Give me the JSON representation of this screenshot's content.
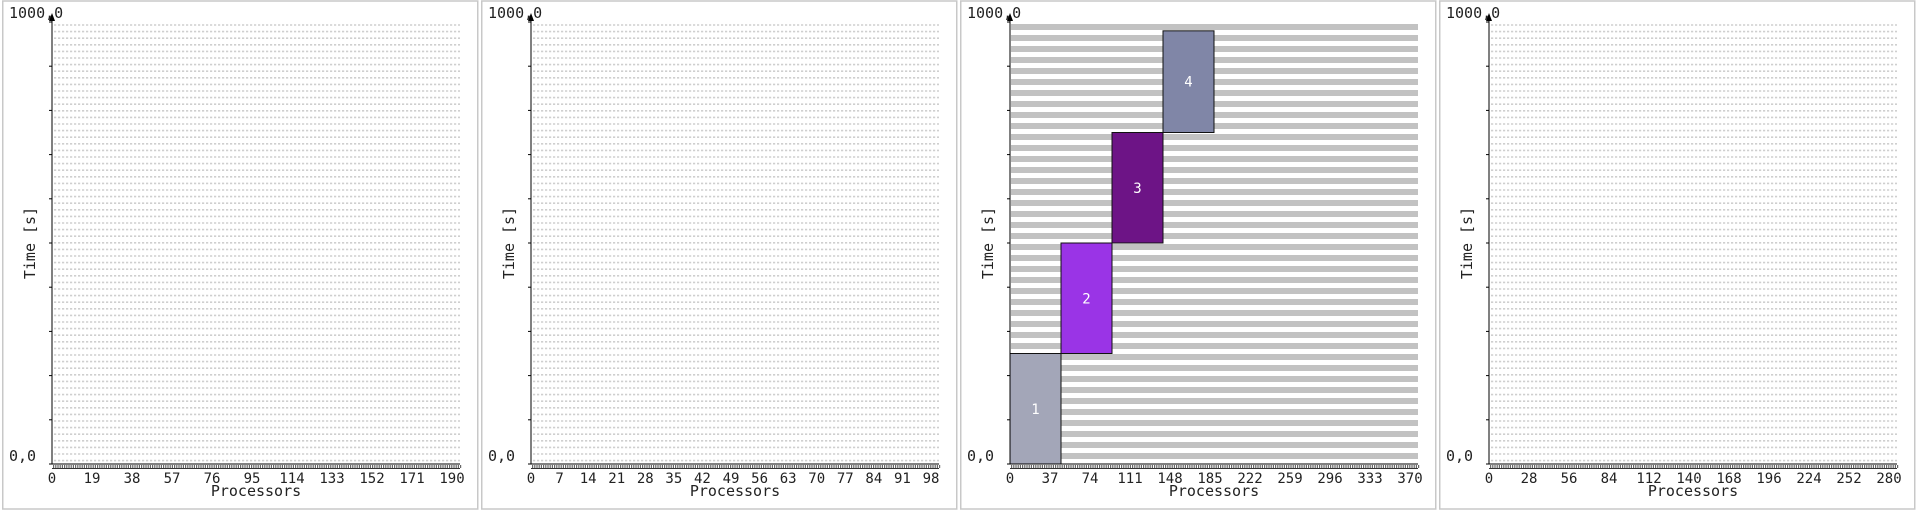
{
  "chart_data": [
    {
      "type": "gantt",
      "xlabel": "Processors",
      "ylabel": "Time [s]",
      "y_top_label": "1000,0",
      "y_bottom_label": "0,0",
      "ylim": [
        0,
        1000
      ],
      "xlim": [
        0,
        200
      ],
      "x_ticks": [
        "0",
        "19",
        "38",
        "57",
        "76",
        "95",
        "114",
        "133",
        "152",
        "171",
        "190"
      ],
      "background_grid": "dense-dashed",
      "jobs": []
    },
    {
      "type": "gantt",
      "xlabel": "Processors",
      "ylabel": "Time [s]",
      "y_top_label": "1000,0",
      "y_bottom_label": "0,0",
      "ylim": [
        0,
        1000
      ],
      "xlim": [
        0,
        100
      ],
      "x_ticks": [
        "0",
        "7",
        "14",
        "21",
        "28",
        "35",
        "42",
        "49",
        "56",
        "63",
        "70",
        "77",
        "84",
        "91",
        "98"
      ],
      "background_grid": "dense-dashed",
      "jobs": []
    },
    {
      "type": "gantt",
      "xlabel": "Processors",
      "ylabel": "Time [s]",
      "y_top_label": "1000,0",
      "y_bottom_label": "0,0",
      "ylim": [
        0,
        1000
      ],
      "xlim": [
        0,
        400
      ],
      "x_ticks": [
        "0",
        "37",
        "74",
        "111",
        "148",
        "185",
        "222",
        "259",
        "296",
        "333",
        "370"
      ],
      "background_grid": "striped",
      "jobs": [
        {
          "label": "1",
          "start_proc": 0,
          "end_proc": 50,
          "start_time": 0,
          "end_time": 250,
          "color": "#a3a6b8"
        },
        {
          "label": "2",
          "start_proc": 50,
          "end_proc": 100,
          "start_time": 250,
          "end_time": 500,
          "color": "#9a34e6"
        },
        {
          "label": "3",
          "start_proc": 100,
          "end_proc": 150,
          "start_time": 500,
          "end_time": 750,
          "color": "#6d1486"
        },
        {
          "label": "4",
          "start_proc": 150,
          "end_proc": 200,
          "start_time": 750,
          "end_time": 980,
          "color": "#8086a7"
        }
      ]
    },
    {
      "type": "gantt",
      "xlabel": "Processors",
      "ylabel": "Time [s]",
      "y_top_label": "1000,0",
      "y_bottom_label": "0,0",
      "ylim": [
        0,
        1000
      ],
      "xlim": [
        0,
        300
      ],
      "x_ticks": [
        "0",
        "28",
        "56",
        "84",
        "112",
        "140",
        "168",
        "196",
        "224",
        "252",
        "280"
      ],
      "background_grid": "dense-dashed",
      "jobs": []
    }
  ]
}
